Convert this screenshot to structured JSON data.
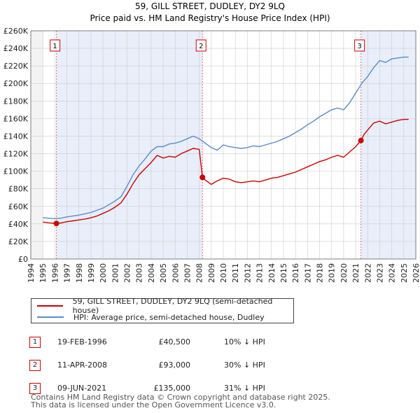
{
  "chart_data": {
    "type": "line",
    "title": "59, GILL STREET, DUDLEY, DY2 9LQ",
    "subtitle": "Price paid vs. HM Land Registry's House Price Index (HPI)",
    "xlim": [
      1994,
      2026
    ],
    "ylim": [
      0,
      260000
    ],
    "x_ticks": [
      "1994",
      "1995",
      "1996",
      "1997",
      "1998",
      "1999",
      "2000",
      "2001",
      "2002",
      "2003",
      "2004",
      "2005",
      "2006",
      "2007",
      "2008",
      "2009",
      "2010",
      "2011",
      "2012",
      "2013",
      "2014",
      "2015",
      "2016",
      "2017",
      "2018",
      "2019",
      "2020",
      "2021",
      "2022",
      "2023",
      "2024",
      "2025",
      "2026"
    ],
    "y_ticks": [
      "£0",
      "£20K",
      "£40K",
      "£60K",
      "£80K",
      "£100K",
      "£120K",
      "£140K",
      "£160K",
      "£180K",
      "£200K",
      "£220K",
      "£240K",
      "£260K"
    ],
    "series": [
      {
        "name": "59, GILL STREET, DUDLEY, DY2 9LQ (semi-detached house)",
        "color": "#cc0000",
        "x": [
          1995.0,
          1995.5,
          1996.13,
          1996.5,
          1997,
          1997.5,
          1998,
          1998.5,
          1999,
          1999.5,
          2000,
          2000.5,
          2001,
          2001.5,
          2002,
          2002.5,
          2003,
          2003.5,
          2004,
          2004.5,
          2005,
          2005.5,
          2006,
          2006.5,
          2007,
          2007.5,
          2008.0,
          2008.27,
          2008.5,
          2009,
          2009.5,
          2010,
          2010.5,
          2011,
          2011.5,
          2012,
          2012.5,
          2013,
          2013.5,
          2014,
          2014.5,
          2015,
          2015.5,
          2016,
          2016.5,
          2017,
          2017.5,
          2018,
          2018.5,
          2019,
          2019.5,
          2020,
          2020.5,
          2021,
          2021.44,
          2021.7,
          2022,
          2022.5,
          2023,
          2023.5,
          2024,
          2024.5,
          2025,
          2025.4
        ],
        "y": [
          42000,
          41200,
          40500,
          41000,
          42500,
          43500,
          44500,
          45500,
          47000,
          49000,
          52000,
          55000,
          59000,
          64000,
          74000,
          86000,
          96000,
          103000,
          110000,
          118000,
          115000,
          117000,
          116000,
          120000,
          123000,
          126000,
          125000,
          93000,
          90000,
          85000,
          89000,
          92000,
          91000,
          88000,
          87000,
          88000,
          89000,
          88000,
          90000,
          92000,
          93000,
          95000,
          97000,
          99000,
          102000,
          105000,
          108000,
          111000,
          113000,
          116000,
          118000,
          116000,
          122000,
          128000,
          135000,
          142000,
          147000,
          155000,
          157000,
          154000,
          156000,
          158000,
          159000,
          159000
        ]
      },
      {
        "name": "HPI: Average price, semi-detached house, Dudley",
        "color": "#5b8cc8",
        "x": [
          1995.0,
          1995.5,
          1996.0,
          1996.5,
          1997,
          1997.5,
          1998,
          1998.5,
          1999,
          1999.5,
          2000,
          2000.5,
          2001,
          2001.5,
          2002,
          2002.5,
          2003,
          2003.5,
          2004,
          2004.5,
          2005,
          2005.5,
          2006,
          2006.5,
          2007,
          2007.5,
          2008.0,
          2008.5,
          2009,
          2009.5,
          2010,
          2010.5,
          2011,
          2011.5,
          2012,
          2012.5,
          2013,
          2013.5,
          2014,
          2014.5,
          2015,
          2015.5,
          2016,
          2016.5,
          2017,
          2017.5,
          2018,
          2018.5,
          2019,
          2019.5,
          2020,
          2020.5,
          2021,
          2021.5,
          2022,
          2022.5,
          2023,
          2023.5,
          2024,
          2024.5,
          2025,
          2025.4
        ],
        "y": [
          47000,
          46500,
          46000,
          46500,
          48000,
          49000,
          50000,
          51500,
          53000,
          55500,
          58000,
          62000,
          66000,
          71000,
          83000,
          96000,
          106000,
          114000,
          123000,
          128000,
          128000,
          131000,
          132000,
          134000,
          137000,
          140000,
          137000,
          132000,
          127000,
          124000,
          130000,
          128000,
          127000,
          126000,
          127000,
          129000,
          128000,
          130000,
          132000,
          134000,
          137000,
          140000,
          144000,
          148000,
          153000,
          157000,
          162000,
          166000,
          170000,
          172000,
          170000,
          178000,
          189000,
          200000,
          208000,
          218000,
          226000,
          224000,
          228000,
          229000,
          230000,
          230000
        ]
      }
    ],
    "sales": [
      {
        "label": "1",
        "x": 1996.13,
        "price": 40500
      },
      {
        "label": "2",
        "x": 2008.27,
        "price": 93000
      },
      {
        "label": "3",
        "x": 2021.44,
        "price": 135000
      }
    ]
  },
  "legend": {
    "property_label": "59, GILL STREET, DUDLEY, DY2 9LQ (semi-detached house)",
    "hpi_label": "HPI: Average price, semi-detached house, Dudley"
  },
  "transactions": [
    {
      "num": "1",
      "date": "19-FEB-1996",
      "price": "£40,500",
      "hpi": "10% ↓ HPI"
    },
    {
      "num": "2",
      "date": "11-APR-2008",
      "price": "£93,000",
      "hpi": "30% ↓ HPI"
    },
    {
      "num": "3",
      "date": "09-JUN-2021",
      "price": "£135,000",
      "hpi": "31% ↓ HPI"
    }
  ],
  "footer": {
    "line1": "Contains HM Land Registry data © Crown copyright and database right 2025.",
    "line2": "This data is licensed under the Open Government Licence v3.0."
  },
  "colors": {
    "property": "#cc0000",
    "hpi": "#5b8cc8",
    "shade": "#e8eefa",
    "grid": "#cccccc"
  }
}
